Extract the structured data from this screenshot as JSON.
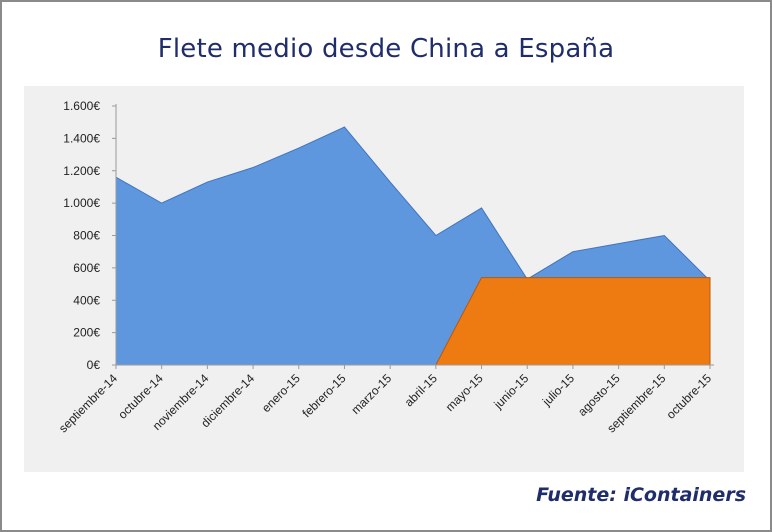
{
  "chart_data": {
    "type": "area",
    "title": "Flete medio desde China a España",
    "xlabel": "",
    "ylabel": "",
    "categories": [
      "septiembre-14",
      "octubre-14",
      "noviembre-14",
      "diciembre-14",
      "enero-15",
      "febrero-15",
      "marzo-15",
      "abril-15",
      "mayo-15",
      "junio-15",
      "julio-15",
      "agosto-15",
      "septiembre-15",
      "octubre-15"
    ],
    "series": [
      {
        "color": "#5f97de",
        "values": [
          1160,
          1000,
          1130,
          1220,
          1340,
          1470,
          1130,
          800,
          970,
          530,
          700,
          750,
          800,
          520
        ]
      },
      {
        "color": "#ee7a12",
        "values": [
          0,
          0,
          0,
          0,
          0,
          0,
          0,
          0,
          540,
          540,
          540,
          540,
          540,
          540
        ]
      }
    ],
    "ylim": [
      0,
      1600
    ],
    "yticks": [
      0,
      200,
      400,
      600,
      800,
      1000,
      1200,
      1400,
      1600
    ],
    "ytick_labels": [
      "0€",
      "200€",
      "400€",
      "600€",
      "800€",
      "1.000€",
      "1.200€",
      "1.400€",
      "1.600€"
    ],
    "grid": false,
    "legend": "none"
  },
  "source": "Fuente: iContainers"
}
